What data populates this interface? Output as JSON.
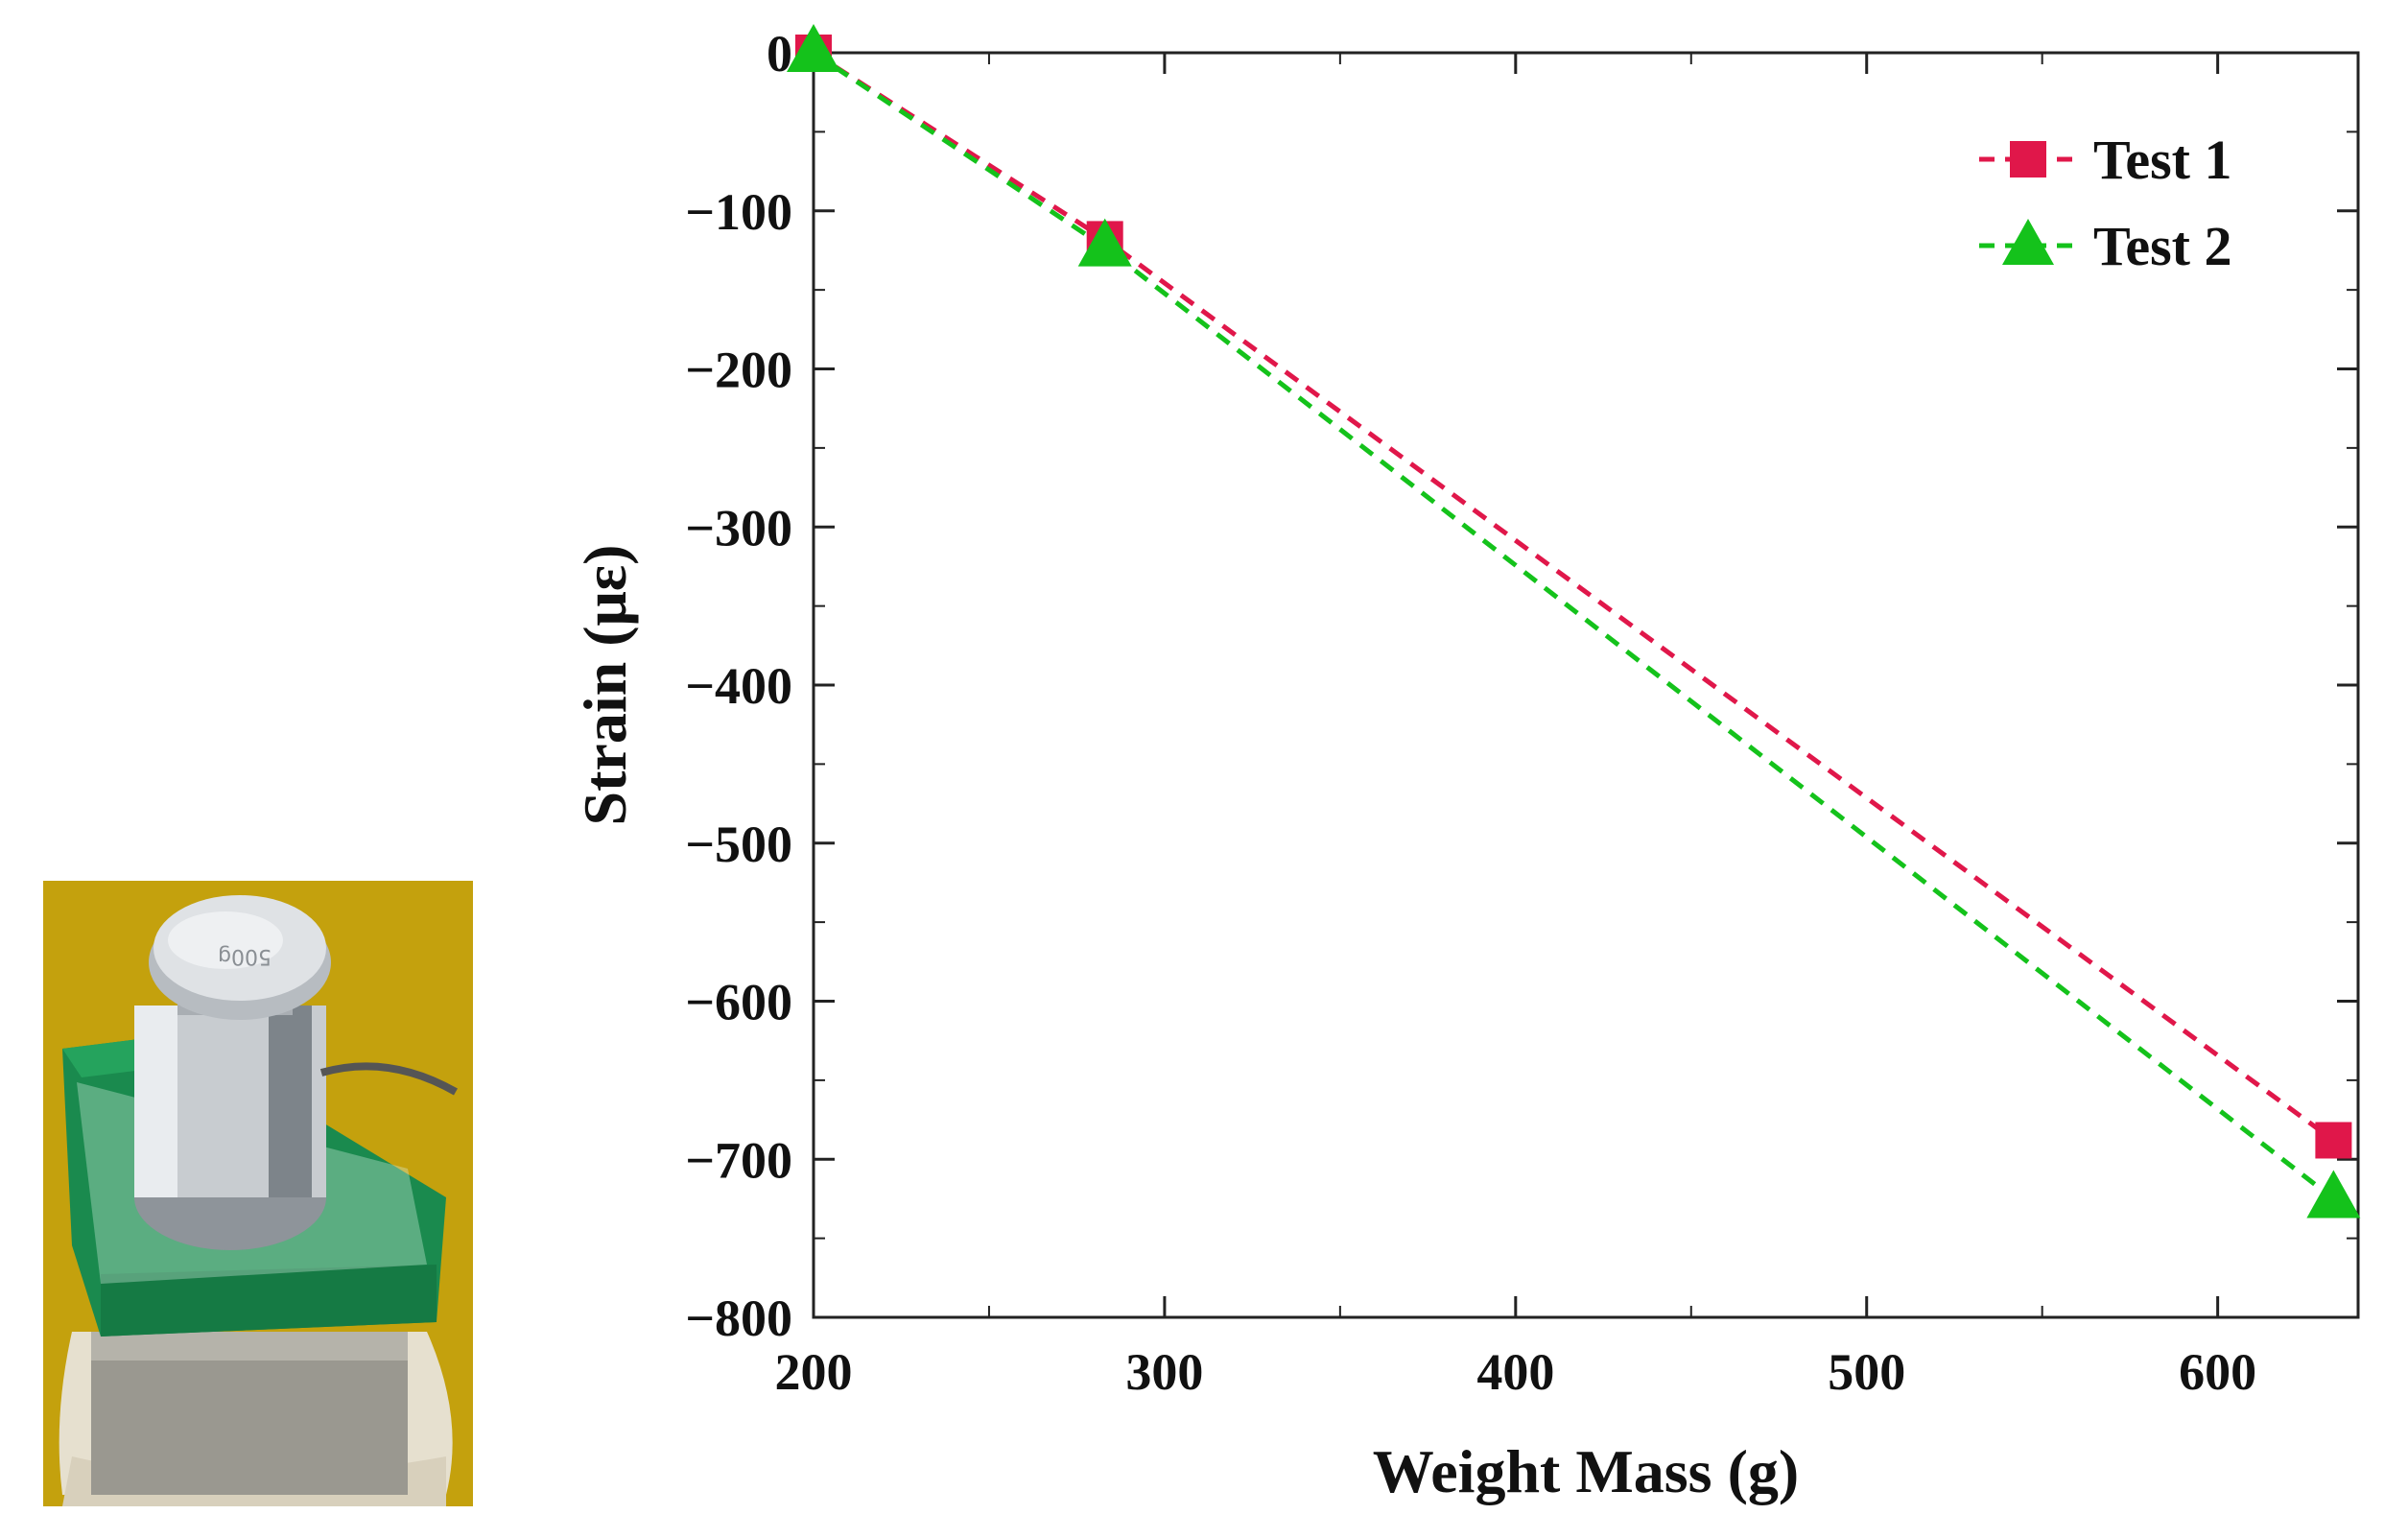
{
  "photo": {
    "description_label": "Weight on sensor photo",
    "weight_engraving": "500g",
    "colors": {
      "background": "#c9a50e",
      "board": "#1a8a4e",
      "metal": "#c8ccd0",
      "base": "#e6e0cf"
    }
  },
  "chart_data": {
    "type": "line",
    "title": "",
    "xlabel": "Weight Mass (g)",
    "ylabel": "Strain (με)",
    "xlim": [
      200,
      640
    ],
    "ylim": [
      -800,
      0
    ],
    "xticks": [
      200,
      300,
      400,
      500,
      600
    ],
    "yticks": [
      0,
      -100,
      -200,
      -300,
      -400,
      -500,
      -600,
      -700,
      -800
    ],
    "grid": false,
    "legend_position": "top-right",
    "series": [
      {
        "name": "Test 1",
        "marker": "square",
        "color": "#e0174a",
        "line_style": "dashed",
        "x": [
          200,
          283,
          633
        ],
        "y": [
          0,
          -118,
          -688
        ]
      },
      {
        "name": "Test 2",
        "marker": "triangle",
        "color": "#14c21b",
        "line_style": "dashed",
        "x": [
          200,
          283,
          633
        ],
        "y": [
          0,
          -123,
          -725
        ]
      }
    ]
  }
}
